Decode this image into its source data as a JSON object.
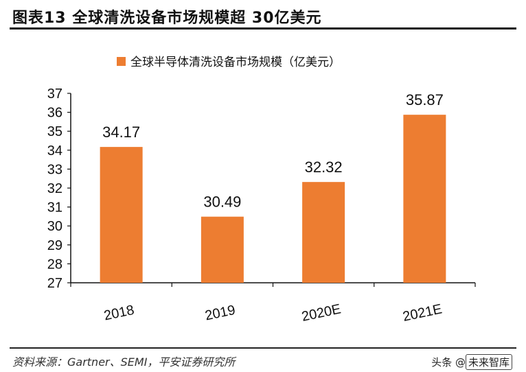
{
  "header": {
    "figure_title": "图表13    全球清洗设备市场规模超 30亿美元"
  },
  "footer": {
    "source": "资料来源：Gartner、SEMI，平安证券研究所",
    "watermark_prefix": "头条 @",
    "watermark_name": "未来智库"
  },
  "colors": {
    "bar": "#ED7D31",
    "axis": "#111111"
  },
  "chart_data": {
    "type": "bar",
    "title": "",
    "categories": [
      "2018",
      "2019",
      "2020E",
      "2021E"
    ],
    "series": [
      {
        "name": "全球半导体清洗设备市场规模（亿美元）",
        "values": [
          34.17,
          30.49,
          32.32,
          35.87
        ]
      }
    ],
    "data_labels": [
      "34.17",
      "30.49",
      "32.32",
      "35.87"
    ],
    "ylim": [
      27,
      37
    ],
    "yticks": [
      27,
      28,
      29,
      30,
      31,
      32,
      33,
      34,
      35,
      36,
      37
    ],
    "xlabel": "",
    "ylabel": "",
    "legend": "top-center",
    "grid": false
  }
}
